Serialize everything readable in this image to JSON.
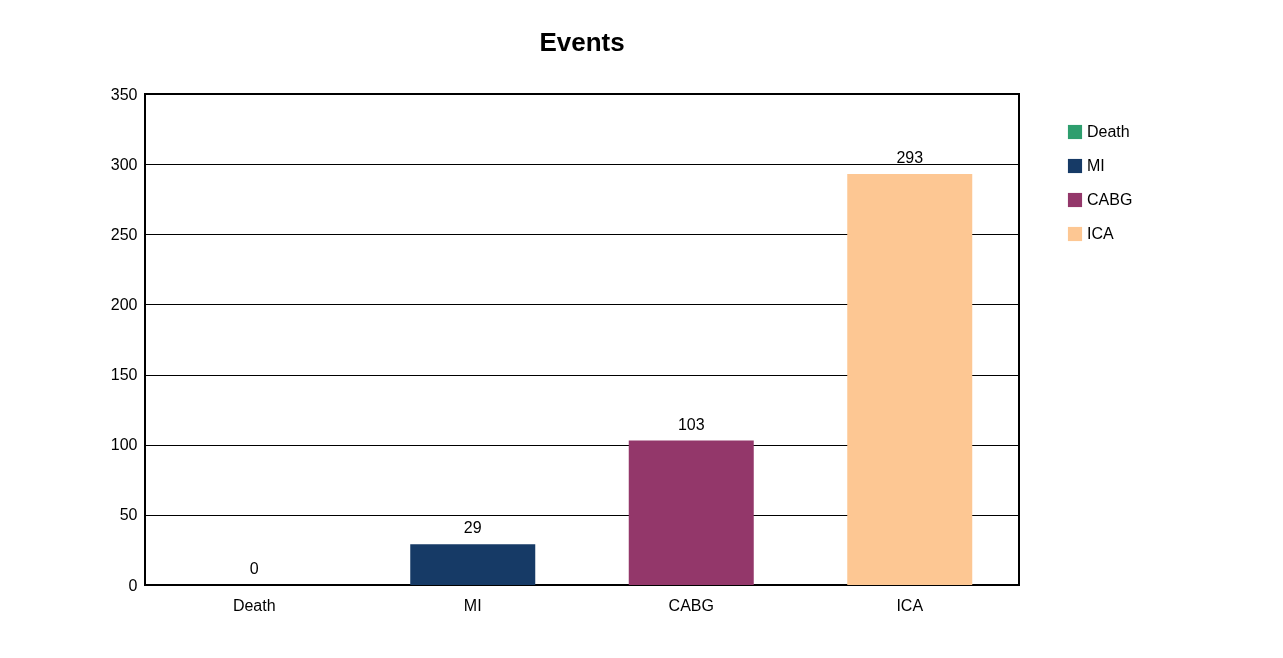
{
  "chart_data": {
    "type": "bar",
    "title": "Events",
    "categories": [
      "Death",
      "MI",
      "CABG",
      "ICA"
    ],
    "series": [
      {
        "name": "Death",
        "color": "#2e9e6e",
        "values": [
          0,
          null,
          null,
          null
        ]
      },
      {
        "name": "MI",
        "color": "#163a66",
        "values": [
          null,
          29,
          null,
          null
        ]
      },
      {
        "name": "CABG",
        "color": "#93376a",
        "values": [
          null,
          null,
          103,
          null
        ]
      },
      {
        "name": "ICA",
        "color": "#fdc793",
        "values": [
          null,
          null,
          null,
          293
        ]
      }
    ],
    "ylim": [
      0,
      350
    ],
    "yticks": [
      0,
      50,
      100,
      150,
      200,
      250,
      300,
      350
    ],
    "grid": "y",
    "legend": "right",
    "data_labels": true
  }
}
